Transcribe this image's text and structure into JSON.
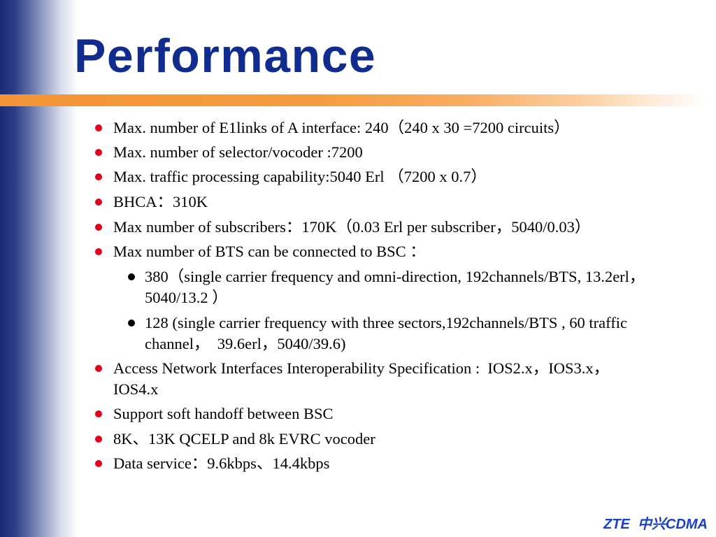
{
  "title": "Performance",
  "bullets": [
    {
      "lines": [
        "Max. number of E1links of A interface: 240（240 x 30 =7200 circuits）"
      ]
    },
    {
      "lines": [
        "Max. number of selector/vocoder :7200"
      ]
    },
    {
      "lines": [
        "Max. traffic processing capability:5040 Erl （7200 x 0.7）"
      ]
    },
    {
      "lines": [
        "BHCA：310K"
      ]
    },
    {
      "lines": [
        "Max number of subscribers：170K（0.03 Erl per subscriber，5040/0.03）"
      ]
    },
    {
      "lines": [
        "Max number of BTS can be connected to BSC ："
      ],
      "sub_items": [
        {
          "lines": [
            "380（single carrier frequency and omni-direction, 192channels/BTS, 13.2erl，",
            "5040/13.2 ）"
          ]
        },
        {
          "lines": [
            "128 (single carrier frequency with three sectors,192channels/BTS , 60 traffic",
            "channel，  39.6erl，5040/39.6)"
          ]
        }
      ]
    },
    {
      "lines": [
        "Access Network Interfaces Interoperability Specification :  IOS2.x，IOS3.x，",
        "IOS4.x"
      ]
    },
    {
      "lines": [
        "Support soft handoff between BSC"
      ]
    },
    {
      "lines": [
        "8K、13K QCELP and 8k EVRC vocoder"
      ]
    },
    {
      "lines": [
        "Data service：9.6kbps、14.4kbps"
      ]
    }
  ],
  "footer": {
    "brand": "ZTE  中兴CDMA"
  },
  "colors": {
    "title": "#102c8e",
    "sidebar": "#1a2a78",
    "accent_bar": "#f29537",
    "main_bullet": "#e3001b",
    "sub_bullet": "#000000",
    "footer": "#1740c4"
  }
}
